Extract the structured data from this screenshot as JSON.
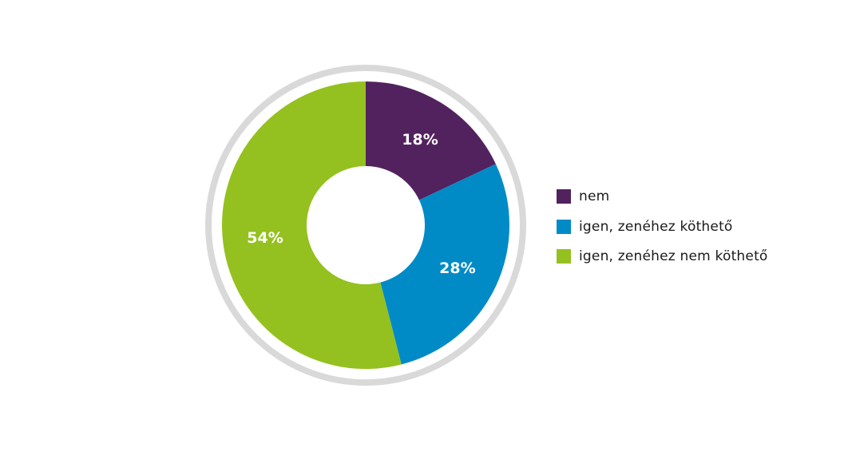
{
  "chart_data": {
    "type": "pie",
    "variant": "donut",
    "categories": [
      "nem",
      "igen, zenéhez köthető",
      "igen, zenéhez nem köthető"
    ],
    "values": [
      18,
      28,
      54
    ],
    "value_labels": [
      "18%",
      "28%",
      "54%"
    ],
    "colors": [
      "#52225e",
      "#008bc7",
      "#94c11f"
    ],
    "ring_color": "#d9d9d9",
    "legend_position": "right",
    "title": ""
  }
}
